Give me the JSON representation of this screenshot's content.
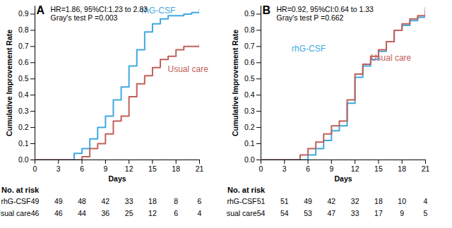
{
  "chart_data": [
    {
      "type": "line",
      "line_style": "step",
      "panel": "A",
      "annotations": [
        "HR=1.86, 95%CI:1.23 to 2.83",
        "Gray's test P =0.003"
      ],
      "x_label": "Days",
      "y_label": "Cumulative Improvement Rate",
      "x": [
        0,
        1,
        2,
        3,
        4,
        5,
        6,
        7,
        8,
        9,
        10,
        11,
        12,
        13,
        14,
        15,
        16,
        17,
        18,
        19,
        20,
        21
      ],
      "series": [
        {
          "name": "rhG-CSF",
          "color": "#3fa9e0",
          "values": [
            0,
            0,
            0,
            0,
            0,
            0.04,
            0.07,
            0.13,
            0.2,
            0.27,
            0.37,
            0.45,
            0.58,
            0.68,
            0.79,
            0.84,
            0.87,
            0.89,
            0.89,
            0.9,
            0.91,
            0.93
          ]
        },
        {
          "name": "Usual care",
          "color": "#c0605a",
          "values": [
            0,
            0,
            0,
            0,
            0,
            0,
            0.02,
            0.07,
            0.1,
            0.16,
            0.24,
            0.27,
            0.39,
            0.47,
            0.52,
            0.57,
            0.62,
            0.64,
            0.68,
            0.7,
            0.7,
            0.71
          ]
        }
      ],
      "xlim": [
        0,
        21
      ],
      "xticks": [
        0,
        3,
        6,
        9,
        12,
        15,
        18,
        21
      ],
      "ylim": [
        0,
        0.95
      ],
      "yticks": [
        {
          "value": 0,
          "label": "0.0"
        },
        0.1,
        0.2,
        0.3,
        0.4,
        0.5,
        0.6,
        0.7,
        0.8,
        0.9
      ],
      "risk_table": {
        "title": "No. at risk",
        "x": [
          0,
          3,
          6,
          9,
          12,
          15,
          18,
          21
        ],
        "rows": [
          {
            "name": "rhG-CSF",
            "values": [
              49,
              49,
              48,
              42,
              33,
              18,
              8,
              6
            ]
          },
          {
            "name": "Usual care",
            "values": [
              46,
              46,
              44,
              36,
              25,
              12,
              6,
              4
            ]
          }
        ]
      }
    },
    {
      "type": "line",
      "line_style": "step",
      "panel": "B",
      "annotations": [
        "HR=0.92, 95%CI:0.64 to 1.33",
        "Gray's test P =0.662"
      ],
      "x_label": "Days",
      "y_label": "Cumulative Improvement Rate",
      "x": [
        0,
        1,
        2,
        3,
        4,
        5,
        6,
        7,
        8,
        9,
        10,
        11,
        12,
        13,
        14,
        15,
        16,
        17,
        18,
        19,
        20,
        21
      ],
      "series": [
        {
          "name": "rhG-CSF",
          "color": "#3fa9e0",
          "values": [
            0,
            0,
            0,
            0,
            0,
            0,
            0.03,
            0.07,
            0.12,
            0.18,
            0.21,
            0.35,
            0.51,
            0.58,
            0.62,
            0.67,
            0.73,
            0.8,
            0.83,
            0.86,
            0.88,
            0.92
          ]
        },
        {
          "name": "Usual care",
          "color": "#c0605a",
          "values": [
            0,
            0,
            0,
            0,
            0,
            0.03,
            0.07,
            0.11,
            0.16,
            0.21,
            0.24,
            0.37,
            0.53,
            0.59,
            0.64,
            0.68,
            0.73,
            0.8,
            0.84,
            0.87,
            0.89,
            0.94
          ]
        }
      ],
      "xlim": [
        0,
        21
      ],
      "xticks": [
        0,
        3,
        6,
        9,
        12,
        15,
        18,
        21
      ],
      "ylim": [
        0,
        0.95
      ],
      "yticks": [
        {
          "value": 0,
          "label": "0.0"
        },
        0.1,
        0.2,
        0.3,
        0.4,
        0.5,
        0.6,
        0.7,
        0.8,
        0.9
      ],
      "risk_table": {
        "title": "No. at risk",
        "x": [
          0,
          3,
          6,
          9,
          12,
          15,
          18,
          21
        ],
        "rows": [
          {
            "name": "rhG-CSF",
            "values": [
              51,
              51,
              49,
              42,
              32,
              18,
              10,
              4
            ]
          },
          {
            "name": "Usual care",
            "values": [
              54,
              54,
              53,
              47,
              33,
              17,
              9,
              5
            ]
          }
        ]
      }
    }
  ]
}
